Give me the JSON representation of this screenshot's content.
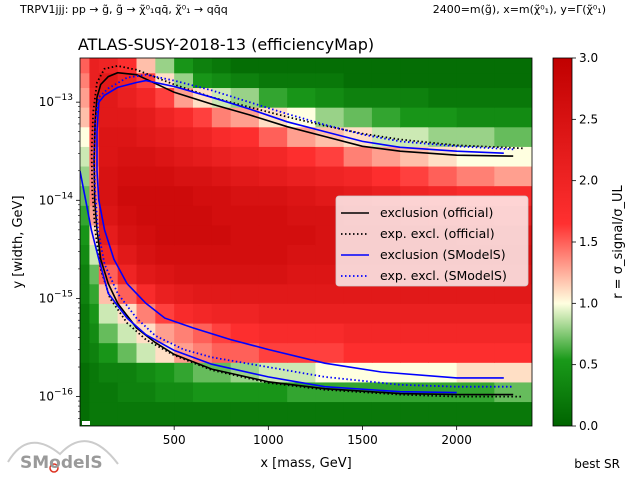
{
  "header": {
    "left": "TRPV1jjj: pp → g̃, g̃ → χ̃⁰₁qq̄, χ̃⁰₁ → qq̄q",
    "right": "2400=m(g̃), x=m(χ̃⁰₁), y=Γ(χ̃⁰₁)"
  },
  "footer": {
    "best_sr": "best SR"
  },
  "logo": {
    "text": "SModelS"
  },
  "colors": {
    "official": "#000000",
    "smodels": "#0000ff",
    "cmap_low": "#006400",
    "cmap_mid": "#ffffe0",
    "cmap_high": "#c00000"
  },
  "chart_data": {
    "type": "heatmap",
    "title": "ATLAS-SUSY-2018-13 (efficiencyMap)",
    "xlabel": "x [mass, GeV]",
    "ylabel": "y [width, GeV]",
    "colorbar_label": "r = σ_signal/σ_UL",
    "xlim": [
      0,
      2400
    ],
    "ylim_log10": [
      -16.3,
      -12.55
    ],
    "y_scale": "log",
    "clim": [
      0,
      3
    ],
    "x_ticks": [
      500,
      1000,
      1500,
      2000
    ],
    "y_ticks": [
      "10^-13",
      "10^-14",
      "10^-15",
      "10^-16"
    ],
    "colorbar_ticks": [
      "0.0",
      "0.5",
      "1.0",
      "1.5",
      "2.0",
      "2.5",
      "3.0"
    ],
    "legend_position": "center-right",
    "legend": [
      {
        "name": "exclusion (official)",
        "color": "#000000",
        "style": "solid"
      },
      {
        "name": "exp. excl. (official)",
        "color": "#000000",
        "style": "dotted"
      },
      {
        "name": "exclusion (SModelS)",
        "color": "#0000ff",
        "style": "solid"
      },
      {
        "name": "exp. excl. (SModelS)",
        "color": "#0000ff",
        "style": "dotted"
      }
    ],
    "grid_x_edges": [
      0,
      50,
      100,
      200,
      300,
      400,
      500,
      600,
      700,
      800,
      950,
      1100,
      1250,
      1400,
      1550,
      1700,
      1850,
      2000,
      2200,
      2400
    ],
    "grid_log10_edges": [
      -16.3,
      -16.05,
      -15.85,
      -15.65,
      -15.45,
      -15.25,
      -15.05,
      -14.85,
      -14.65,
      -14.45,
      -14.25,
      -14.05,
      -13.85,
      -13.65,
      -13.45,
      -13.25,
      -13.05,
      -12.85,
      -12.7,
      -12.55
    ],
    "grid_values": [
      [
        0.1,
        0.2,
        0.2,
        0.2,
        0.2,
        0.2,
        0.2,
        0.2,
        0.2,
        0.2,
        0.2,
        0.2,
        0.2,
        0.2,
        0.2,
        0.2,
        0.2,
        0.2,
        0.2
      ],
      [
        0.1,
        0.2,
        0.2,
        0.3,
        0.3,
        0.4,
        0.4,
        0.5,
        0.5,
        0.5,
        0.5,
        0.6,
        0.6,
        0.6,
        0.6,
        0.6,
        0.6,
        0.6,
        0.7
      ],
      [
        0.1,
        0.2,
        0.3,
        0.3,
        0.4,
        0.5,
        0.6,
        0.7,
        0.7,
        0.8,
        0.9,
        0.9,
        1.0,
        1.0,
        1.0,
        1.0,
        1.0,
        1.1,
        1.1
      ],
      [
        0.2,
        0.3,
        0.5,
        0.7,
        0.9,
        1.1,
        1.3,
        1.4,
        1.5,
        1.5,
        1.6,
        1.6,
        1.6,
        1.7,
        1.7,
        1.7,
        1.7,
        1.7,
        1.7
      ],
      [
        0.2,
        0.4,
        0.7,
        0.9,
        1.1,
        1.3,
        1.4,
        1.5,
        1.6,
        1.7,
        1.8,
        1.8,
        1.8,
        1.9,
        1.9,
        1.9,
        1.9,
        1.9,
        1.9
      ],
      [
        0.2,
        0.5,
        0.9,
        1.1,
        1.4,
        1.6,
        1.8,
        1.9,
        2.0,
        2.0,
        2.1,
        2.1,
        2.1,
        2.1,
        2.1,
        2.1,
        2.1,
        2.1,
        2.1
      ],
      [
        0.3,
        0.6,
        1.2,
        1.5,
        1.8,
        2.1,
        2.2,
        2.3,
        2.3,
        2.3,
        2.3,
        2.3,
        2.3,
        2.3,
        2.3,
        2.3,
        2.3,
        2.3,
        2.3
      ],
      [
        0.3,
        0.7,
        1.5,
        2.0,
        2.3,
        2.4,
        2.5,
        2.5,
        2.5,
        2.5,
        2.5,
        2.4,
        2.4,
        2.4,
        2.4,
        2.4,
        2.4,
        2.4,
        2.4
      ],
      [
        0.4,
        0.9,
        1.9,
        2.3,
        2.5,
        2.6,
        2.6,
        2.6,
        2.6,
        2.6,
        2.6,
        2.5,
        2.5,
        2.5,
        2.5,
        2.5,
        2.5,
        2.5,
        2.5
      ],
      [
        0.5,
        1.1,
        2.2,
        2.5,
        2.6,
        2.7,
        2.7,
        2.7,
        2.7,
        2.6,
        2.6,
        2.6,
        2.5,
        2.5,
        2.5,
        2.5,
        2.5,
        2.4,
        2.4
      ],
      [
        0.6,
        1.3,
        2.4,
        2.6,
        2.7,
        2.7,
        2.7,
        2.7,
        2.6,
        2.6,
        2.6,
        2.5,
        2.5,
        2.4,
        2.4,
        2.3,
        2.2,
        2.2,
        2.1
      ],
      [
        0.7,
        1.4,
        2.5,
        2.7,
        2.7,
        2.7,
        2.7,
        2.6,
        2.6,
        2.5,
        2.5,
        2.4,
        2.3,
        2.2,
        2.1,
        2.0,
        1.9,
        1.8,
        1.8
      ],
      [
        0.8,
        1.4,
        2.5,
        2.6,
        2.6,
        2.6,
        2.5,
        2.5,
        2.4,
        2.3,
        2.2,
        2.1,
        2.0,
        1.9,
        1.7,
        1.6,
        1.5,
        1.4,
        1.3
      ],
      [
        0.9,
        1.5,
        2.4,
        2.5,
        2.5,
        2.4,
        2.3,
        2.2,
        2.1,
        2.0,
        1.9,
        1.7,
        1.6,
        1.4,
        1.3,
        1.2,
        1.1,
        1.0,
        1.0
      ],
      [
        1.0,
        1.6,
        2.4,
        2.4,
        2.3,
        2.2,
        2.1,
        2.0,
        1.8,
        1.7,
        1.5,
        1.3,
        1.2,
        1.1,
        0.9,
        0.9,
        0.8,
        0.8,
        0.7
      ],
      [
        1.2,
        1.8,
        2.3,
        2.3,
        2.2,
        2.0,
        1.8,
        1.6,
        1.4,
        1.3,
        1.1,
        1.0,
        0.8,
        0.7,
        0.6,
        0.5,
        0.5,
        0.4,
        0.4
      ],
      [
        1.3,
        2.0,
        2.3,
        2.1,
        1.9,
        1.6,
        1.3,
        1.1,
        0.9,
        0.8,
        0.6,
        0.5,
        0.4,
        0.3,
        0.3,
        0.3,
        0.2,
        0.2,
        0.2
      ],
      [
        1.4,
        2.1,
        2.3,
        2.0,
        1.6,
        1.1,
        0.8,
        0.5,
        0.4,
        0.3,
        0.2,
        0.2,
        0.2,
        0.1,
        0.1,
        0.1,
        0.1,
        0.1,
        0.1
      ],
      [
        1.5,
        2.1,
        2.0,
        1.7,
        1.2,
        0.8,
        0.5,
        0.3,
        0.2,
        0.1,
        0.1,
        0.1,
        0.1,
        0.1,
        0.1,
        0.1,
        0.1,
        0.1,
        0.1
      ]
    ],
    "series": [
      {
        "name": "exclusion (official)",
        "color": "#000000",
        "dash": "solid",
        "points": [
          [
            2300,
            -13.55
          ],
          [
            2000,
            -13.54
          ],
          [
            1700,
            -13.5
          ],
          [
            1500,
            -13.45
          ],
          [
            1300,
            -13.35
          ],
          [
            1100,
            -13.25
          ],
          [
            900,
            -13.13
          ],
          [
            700,
            -13.02
          ],
          [
            500,
            -12.9
          ],
          [
            300,
            -12.72
          ],
          [
            200,
            -12.7
          ],
          [
            150,
            -12.74
          ],
          [
            110,
            -12.82
          ],
          [
            90,
            -12.95
          ],
          [
            80,
            -13.2
          ],
          [
            75,
            -13.6
          ],
          [
            78,
            -14.0
          ],
          [
            90,
            -14.3
          ],
          [
            110,
            -14.6
          ],
          [
            150,
            -14.85
          ],
          [
            200,
            -15.05
          ],
          [
            300,
            -15.3
          ],
          [
            400,
            -15.45
          ],
          [
            500,
            -15.57
          ],
          [
            700,
            -15.72
          ],
          [
            1000,
            -15.85
          ],
          [
            1300,
            -15.92
          ],
          [
            1700,
            -15.97
          ],
          [
            2000,
            -15.98
          ],
          [
            2300,
            -15.98
          ]
        ]
      },
      {
        "name": "exp. excl. (official)",
        "color": "#000000",
        "dash": "dotted",
        "points": [
          [
            2350,
            -13.47
          ],
          [
            2000,
            -13.44
          ],
          [
            1700,
            -13.38
          ],
          [
            1500,
            -13.32
          ],
          [
            1300,
            -13.24
          ],
          [
            1100,
            -13.15
          ],
          [
            900,
            -13.05
          ],
          [
            700,
            -12.95
          ],
          [
            500,
            -12.82
          ],
          [
            300,
            -12.67
          ],
          [
            200,
            -12.63
          ],
          [
            130,
            -12.66
          ],
          [
            90,
            -12.8
          ],
          [
            70,
            -13.1
          ],
          [
            62,
            -13.5
          ],
          [
            65,
            -13.9
          ],
          [
            80,
            -14.3
          ],
          [
            110,
            -14.7
          ],
          [
            160,
            -15.0
          ],
          [
            250,
            -15.25
          ],
          [
            350,
            -15.42
          ],
          [
            500,
            -15.58
          ],
          [
            700,
            -15.73
          ],
          [
            1000,
            -15.86
          ],
          [
            1300,
            -15.93
          ],
          [
            1700,
            -15.98
          ],
          [
            2000,
            -16.0
          ],
          [
            2350,
            -16.0
          ]
        ]
      },
      {
        "name": "exclusion (SModelS)",
        "color": "#0000ff",
        "dash": "solid",
        "points": [
          [
            2250,
            -13.52
          ],
          [
            2000,
            -13.5
          ],
          [
            1700,
            -13.46
          ],
          [
            1500,
            -13.4
          ],
          [
            1300,
            -13.3
          ],
          [
            1100,
            -13.2
          ],
          [
            900,
            -13.07
          ],
          [
            700,
            -12.95
          ],
          [
            500,
            -12.84
          ],
          [
            350,
            -12.78
          ],
          [
            300,
            -12.8
          ],
          [
            200,
            -12.85
          ],
          [
            130,
            -12.93
          ],
          [
            100,
            -13.0
          ],
          [
            90,
            -13.3
          ],
          [
            90,
            -13.7
          ],
          [
            100,
            -14.0
          ],
          [
            130,
            -14.3
          ],
          [
            180,
            -14.6
          ],
          [
            250,
            -14.85
          ],
          [
            350,
            -15.05
          ],
          [
            450,
            -15.2
          ],
          [
            600,
            -15.3
          ],
          [
            800,
            -15.42
          ],
          [
            1000,
            -15.52
          ],
          [
            1300,
            -15.66
          ],
          [
            1600,
            -15.75
          ],
          [
            2000,
            -15.81
          ],
          [
            2250,
            -15.81
          ]
        ]
      },
      {
        "name": "exp. excl. (SModelS)",
        "color": "#0000ff",
        "dash": "dotted",
        "points": [
          [
            2300,
            -13.48
          ],
          [
            2000,
            -13.45
          ],
          [
            1700,
            -13.4
          ],
          [
            1500,
            -13.33
          ],
          [
            1300,
            -13.23
          ],
          [
            1100,
            -13.12
          ],
          [
            900,
            -13.0
          ],
          [
            700,
            -12.88
          ],
          [
            500,
            -12.78
          ],
          [
            350,
            -12.72
          ],
          [
            250,
            -12.75
          ],
          [
            150,
            -12.86
          ],
          [
            100,
            -12.95
          ],
          [
            80,
            -13.2
          ],
          [
            75,
            -13.6
          ],
          [
            80,
            -13.9
          ],
          [
            95,
            -14.3
          ],
          [
            130,
            -14.65
          ],
          [
            200,
            -14.95
          ],
          [
            300,
            -15.2
          ],
          [
            400,
            -15.38
          ],
          [
            550,
            -15.52
          ],
          [
            700,
            -15.6
          ],
          [
            1000,
            -15.7
          ],
          [
            1300,
            -15.8
          ],
          [
            1700,
            -15.88
          ],
          [
            2000,
            -15.9
          ],
          [
            2300,
            -15.9
          ]
        ]
      },
      {
        "name": "",
        "color": "#0000ff",
        "dash": "solid",
        "points": [
          [
            0,
            -13.7
          ],
          [
            30,
            -14.0
          ],
          [
            60,
            -14.3
          ],
          [
            100,
            -14.6
          ],
          [
            150,
            -14.95
          ],
          [
            250,
            -15.2
          ],
          [
            350,
            -15.37
          ],
          [
            500,
            -15.53
          ],
          [
            700,
            -15.67
          ],
          [
            1000,
            -15.8
          ],
          [
            1300,
            -15.9
          ],
          [
            1700,
            -15.95
          ],
          [
            2000,
            -15.96
          ]
        ]
      }
    ]
  }
}
